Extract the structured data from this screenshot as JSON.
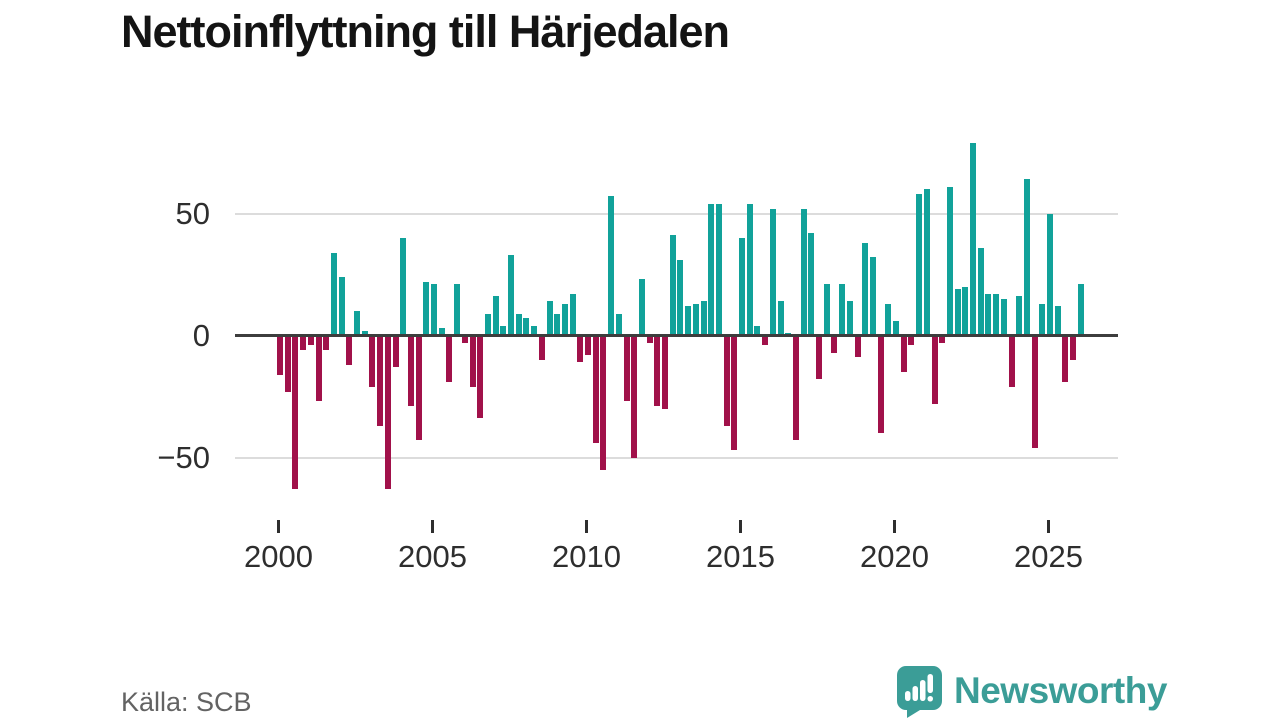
{
  "title": "Nettoinflyttning till Härjedalen",
  "footer": {
    "source": "Källa: SCB",
    "brand": "Newsworthy"
  },
  "colors": {
    "positive": "#11a29a",
    "negative": "#a1114a",
    "zero_axis": "#3d3d3d",
    "gridline": "#dcdcdc",
    "brand_teal": "#3b9d97"
  },
  "chart_data": {
    "type": "bar",
    "title": "Nettoinflyttning till Härjedalen",
    "x_unit": "quarter",
    "start": "2000-Q1",
    "end": "2026-Q1",
    "frequency": "quarterly",
    "values": [
      -16,
      -23,
      -63,
      -6,
      -4,
      -27,
      -6,
      34,
      24,
      -12,
      10,
      2,
      -21,
      -37,
      -63,
      -13,
      40,
      -29,
      -43,
      22,
      21,
      3,
      -19,
      21,
      -3,
      -21,
      -34,
      9,
      16,
      4,
      33,
      9,
      7,
      4,
      -10,
      14,
      9,
      13,
      17,
      -11,
      -8,
      -44,
      -55,
      57,
      9,
      -27,
      -50,
      23,
      -3,
      -29,
      -30,
      41,
      31,
      12,
      13,
      14,
      54,
      54,
      -37,
      -47,
      40,
      54,
      4,
      -4,
      52,
      14,
      1,
      -43,
      52,
      42,
      -18,
      21,
      -7,
      21,
      14,
      -9,
      38,
      32,
      -40,
      13,
      6,
      -15,
      -4,
      58,
      60,
      -28,
      -3,
      61,
      19,
      20,
      79,
      36,
      17,
      17,
      15,
      -21,
      16,
      64,
      -46,
      13,
      50,
      12,
      -19,
      -10,
      21
    ],
    "y_ticks": [
      {
        "value": 50,
        "label": "50"
      },
      {
        "value": 0,
        "label": "0"
      },
      {
        "value": -50,
        "label": "−50"
      }
    ],
    "x_ticks": [
      {
        "year": 2000,
        "label": "2000"
      },
      {
        "year": 2005,
        "label": "2005"
      },
      {
        "year": 2010,
        "label": "2010"
      },
      {
        "year": 2015,
        "label": "2015"
      },
      {
        "year": 2020,
        "label": "2020"
      },
      {
        "year": 2025,
        "label": "2025"
      }
    ],
    "ylim": [
      -70,
      85
    ],
    "grid": "horizontal",
    "legend": "none"
  }
}
